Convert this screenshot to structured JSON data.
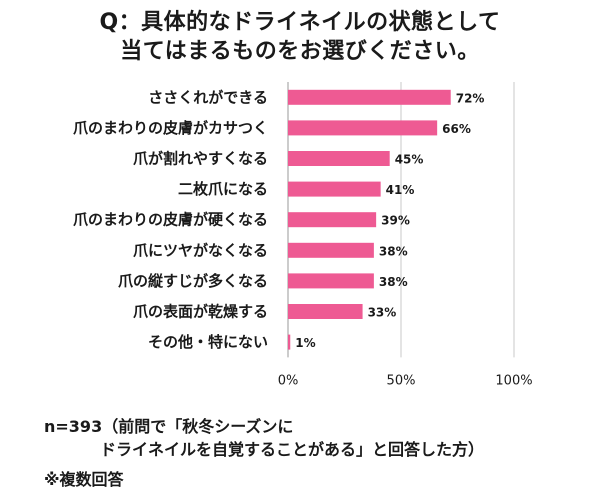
{
  "title": {
    "line1": "Q：具体的なドライネイルの状態として",
    "line2": "当てはまるものをお選びください。"
  },
  "notes": {
    "sample": "n=393（前問で「秋冬シーズンに",
    "sample_cont": "ドライネイルを自覚することがある」と回答した方）",
    "multi": "※複数回答"
  },
  "colors": {
    "bar": "#ee5a93",
    "gridline": "#c8c8c8",
    "axis": "#9a9a9a"
  },
  "chart_data": {
    "type": "bar",
    "orientation": "horizontal",
    "categories": [
      "ささくれができる",
      "爪のまわりの皮膚がカサつく",
      "爪が割れやすくなる",
      "二枚爪になる",
      "爪のまわりの皮膚が硬くなる",
      "爪にツヤがなくなる",
      "爪の縦すじが多くなる",
      "爪の表面が乾燥する",
      "その他・特にない"
    ],
    "values": [
      72,
      66,
      45,
      41,
      39,
      38,
      38,
      33,
      1
    ],
    "value_labels": [
      "72%",
      "66%",
      "45%",
      "41%",
      "39%",
      "38%",
      "38%",
      "33%",
      "1%"
    ],
    "xlim": [
      0,
      100
    ],
    "xticks": [
      0,
      50,
      100
    ],
    "xtick_labels": [
      "0%",
      "50%",
      "100%"
    ],
    "grid": true
  }
}
